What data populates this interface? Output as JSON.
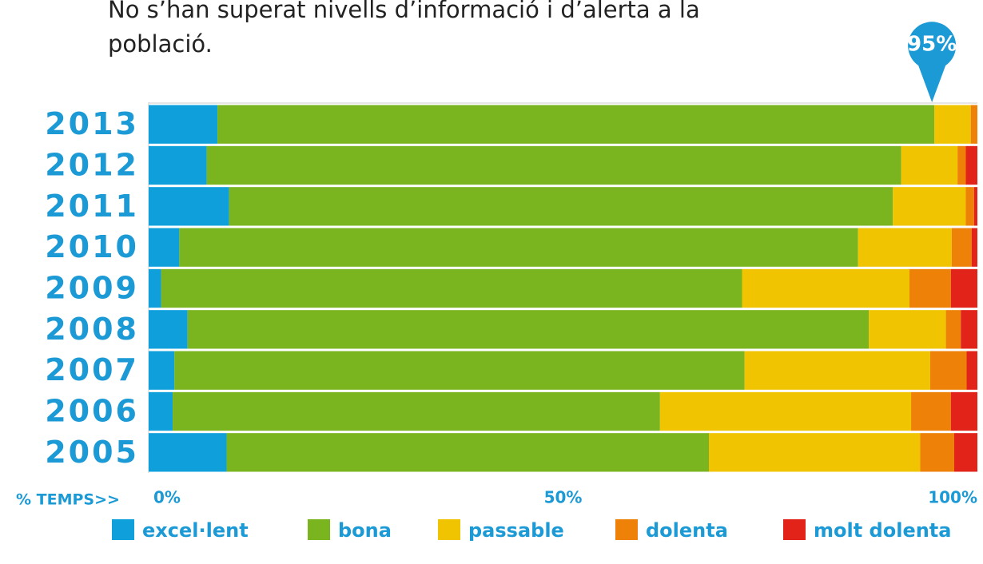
{
  "chart_data": {
    "type": "stacked-bar-horizontal",
    "title": "No s’han superat nivells d’informació i d’alerta a la població.",
    "annotation": {
      "value": 95,
      "label": "95%"
    },
    "xlabel": "% TEMPS>>",
    "categories": [
      "2013",
      "2012",
      "2011",
      "2010",
      "2009",
      "2008",
      "2007",
      "2006",
      "2005"
    ],
    "series": [
      {
        "name": "excel·lent",
        "color": "#0fa0dc",
        "values": [
          8.3,
          7.0,
          9.7,
          3.7,
          1.5,
          4.7,
          3.1,
          2.9,
          9.4
        ]
      },
      {
        "name": "bona",
        "color": "#7ab51f",
        "values": [
          86.5,
          83.8,
          80.1,
          81.9,
          70.1,
          82.2,
          68.8,
          58.8,
          58.2
        ]
      },
      {
        "name": "passable",
        "color": "#f0c400",
        "values": [
          4.4,
          6.8,
          8.8,
          11.3,
          20.2,
          9.3,
          22.4,
          30.3,
          25.5
        ]
      },
      {
        "name": "dolenta",
        "color": "#ee8108",
        "values": [
          0.8,
          1.0,
          1.0,
          2.4,
          5.0,
          1.8,
          4.4,
          4.8,
          4.1
        ]
      },
      {
        "name": "molt dolenta",
        "color": "#e2231a",
        "values": [
          0.0,
          1.4,
          0.4,
          0.7,
          3.2,
          2.0,
          1.3,
          3.2,
          2.8
        ]
      }
    ],
    "xlim": [
      0,
      100
    ],
    "xticks": [
      {
        "value": 0,
        "label": "0%"
      },
      {
        "value": 50,
        "label": "50%"
      },
      {
        "value": 100,
        "label": "100%"
      }
    ],
    "label_color": "#1c9ad6"
  }
}
